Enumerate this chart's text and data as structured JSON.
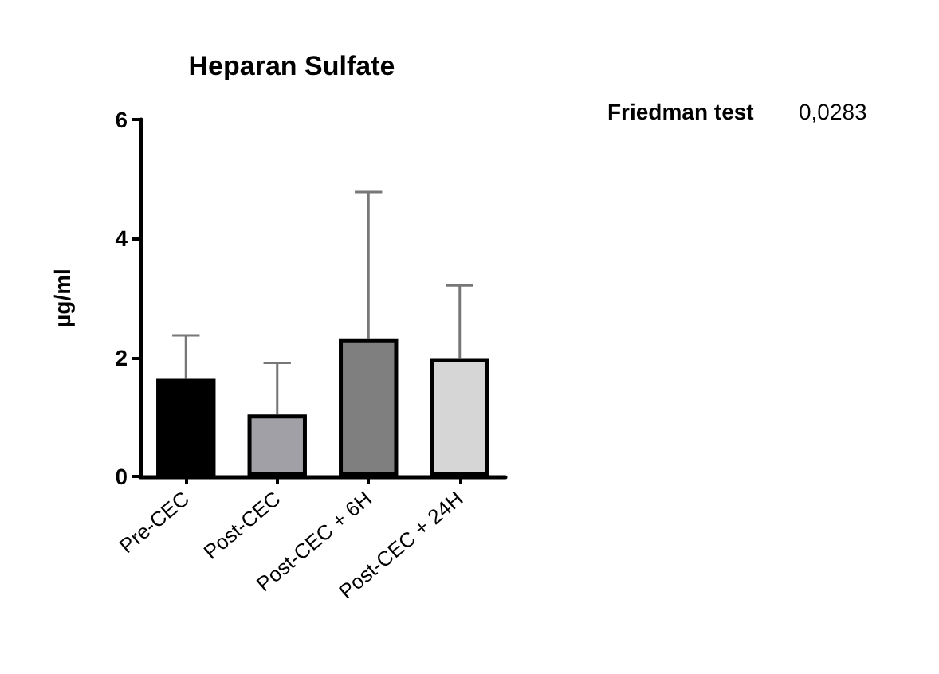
{
  "chart_data": {
    "type": "bar",
    "title": "Heparan Sulfate",
    "ylabel": "µg/ml",
    "categories": [
      "Pre-CEC",
      "Post-CEC",
      "Post-CEC + 6H",
      "Post-CEC + 24H"
    ],
    "values": [
      1.64,
      1.04,
      2.32,
      1.99
    ],
    "colors": [
      "#000000",
      "#a0a0a6",
      "#7f7f7f",
      "#d6d6d6"
    ],
    "errors": [
      [
        1.64,
        2.37
      ],
      [
        1.04,
        1.91
      ],
      [
        2.32,
        4.78
      ],
      [
        1.99,
        3.21
      ]
    ],
    "ylim": [
      0,
      6
    ],
    "yticks": [
      0,
      2,
      4,
      6
    ],
    "grid": false,
    "annotations": [
      "Friedman test",
      "0,0283"
    ]
  }
}
